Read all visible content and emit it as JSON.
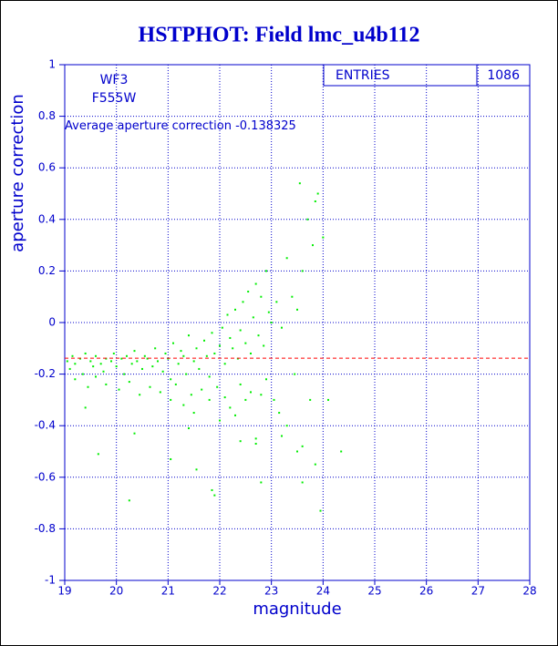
{
  "chart_data": {
    "type": "scatter",
    "title": "HSTPHOT: Field lmc_u4b112",
    "x_label": "magnitude",
    "y_label": "aperture correction",
    "annotations": [
      "WF3",
      "F555W"
    ],
    "average_label": "Average aperture correction",
    "average": -0.138325,
    "stats_label": "ENTRIES",
    "entries": 1086,
    "xlim": [
      19,
      28
    ],
    "ylim": [
      -1,
      1
    ],
    "xticks": [
      19,
      20,
      21,
      22,
      23,
      24,
      25,
      26,
      27,
      28
    ],
    "yticks": [
      -1,
      -0.8,
      -0.6,
      -0.4,
      -0.2,
      0,
      0.2,
      0.4,
      0.6,
      0.8,
      1
    ],
    "grid": true,
    "color": "#00ee00",
    "average_color": "#ff0000",
    "x": [
      19.05,
      19.1,
      19.15,
      19.2,
      19.3,
      19.35,
      19.4,
      19.5,
      19.55,
      19.6,
      19.7,
      19.75,
      19.8,
      19.9,
      19.95,
      20.0,
      20.1,
      20.15,
      20.2,
      20.3,
      20.35,
      20.4,
      20.5,
      20.55,
      20.6,
      20.7,
      20.75,
      20.8,
      20.9,
      20.95,
      21.0,
      21.05,
      21.1,
      21.2,
      21.25,
      21.3,
      21.35,
      21.4,
      21.5,
      21.55,
      21.6,
      21.7,
      21.75,
      21.8,
      21.85,
      21.9,
      22.0,
      22.05,
      22.1,
      22.15,
      22.2,
      22.25,
      22.3,
      22.35,
      22.4,
      22.45,
      22.5,
      22.55,
      22.6,
      22.65,
      22.7,
      22.75,
      22.8,
      22.85,
      22.9,
      22.95,
      23.0,
      23.1,
      23.2,
      23.3,
      23.4,
      23.5,
      23.6,
      23.7,
      23.8,
      23.9,
      24.0,
      19.2,
      19.45,
      19.6,
      19.8,
      20.05,
      20.25,
      20.45,
      20.65,
      20.85,
      21.05,
      21.15,
      21.3,
      21.45,
      21.5,
      21.65,
      21.8,
      21.95,
      22.0,
      22.1,
      22.2,
      22.3,
      22.4,
      22.5,
      22.6,
      22.7,
      22.8,
      22.9,
      23.05,
      23.15,
      23.3,
      23.45,
      23.6,
      23.75,
      23.85,
      19.4,
      19.65,
      20.25,
      20.35,
      21.05,
      21.4,
      21.55,
      21.85,
      21.9,
      22.4,
      22.7,
      22.8,
      23.2,
      23.5,
      23.6,
      24.1,
      24.35,
      23.95,
      23.85,
      23.55
    ],
    "values": [
      -0.15,
      -0.18,
      -0.13,
      -0.16,
      -0.14,
      -0.2,
      -0.12,
      -0.15,
      -0.17,
      -0.13,
      -0.16,
      -0.19,
      -0.14,
      -0.15,
      -0.12,
      -0.17,
      -0.14,
      -0.2,
      -0.13,
      -0.16,
      -0.11,
      -0.15,
      -0.18,
      -0.13,
      -0.14,
      -0.17,
      -0.1,
      -0.15,
      -0.19,
      -0.12,
      -0.14,
      -0.22,
      -0.08,
      -0.16,
      -0.11,
      -0.13,
      -0.2,
      -0.05,
      -0.15,
      -0.1,
      -0.18,
      -0.07,
      -0.13,
      -0.21,
      -0.04,
      -0.12,
      -0.09,
      -0.02,
      -0.16,
      0.03,
      -0.06,
      -0.1,
      0.05,
      -0.14,
      -0.03,
      0.08,
      -0.08,
      0.12,
      -0.12,
      0.02,
      0.15,
      -0.05,
      0.1,
      -0.09,
      0.2,
      0.04,
      0.0,
      0.08,
      -0.02,
      0.25,
      0.1,
      0.05,
      0.2,
      0.4,
      0.3,
      0.5,
      0.33,
      -0.22,
      -0.25,
      -0.21,
      -0.24,
      -0.26,
      -0.23,
      -0.28,
      -0.25,
      -0.27,
      -0.3,
      -0.24,
      -0.32,
      -0.28,
      -0.35,
      -0.26,
      -0.3,
      -0.25,
      -0.38,
      -0.29,
      -0.33,
      -0.36,
      -0.24,
      -0.3,
      -0.27,
      -0.45,
      -0.28,
      -0.22,
      -0.3,
      -0.35,
      -0.4,
      -0.2,
      -0.48,
      -0.3,
      -0.55,
      -0.33,
      -0.51,
      -0.69,
      -0.43,
      -0.53,
      -0.41,
      -0.57,
      -0.65,
      -0.67,
      -0.46,
      -0.47,
      -0.62,
      -0.44,
      -0.5,
      -0.62,
      -0.3,
      -0.5,
      -0.73,
      0.47,
      0.54
    ]
  }
}
